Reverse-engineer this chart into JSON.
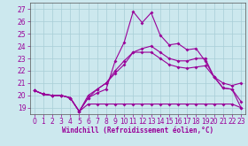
{
  "xlabel": "Windchill (Refroidissement éolien,°C)",
  "xlim_min": -0.5,
  "xlim_max": 23.5,
  "ylim_min": 18.5,
  "ylim_max": 27.5,
  "xticks": [
    0,
    1,
    2,
    3,
    4,
    5,
    6,
    7,
    8,
    9,
    10,
    11,
    12,
    13,
    14,
    15,
    16,
    17,
    18,
    19,
    20,
    21,
    22,
    23
  ],
  "yticks": [
    19,
    20,
    21,
    22,
    23,
    24,
    25,
    26,
    27
  ],
  "background_color": "#cce8ee",
  "grid_color": "#a8cdd6",
  "line_color": "#990099",
  "figw": 2.8,
  "figh": 1.65,
  "curves": [
    [
      20.4,
      20.1,
      20.0,
      20.0,
      19.8,
      18.7,
      19.3,
      19.3,
      19.3,
      19.3,
      19.3,
      19.3,
      19.3,
      19.3,
      19.3,
      19.3,
      19.3,
      19.3,
      19.3,
      19.3,
      19.3,
      19.3,
      19.3,
      19.0
    ],
    [
      20.4,
      20.1,
      20.0,
      20.0,
      19.8,
      18.7,
      19.8,
      20.5,
      21.0,
      21.8,
      22.5,
      23.5,
      23.5,
      23.5,
      23.0,
      22.5,
      22.3,
      22.2,
      22.3,
      22.4,
      21.5,
      20.6,
      20.5,
      19.5
    ],
    [
      20.4,
      20.1,
      20.0,
      20.0,
      19.8,
      18.7,
      20.0,
      20.5,
      21.0,
      22.0,
      22.8,
      23.5,
      23.8,
      24.0,
      23.5,
      23.0,
      22.8,
      22.8,
      23.0,
      23.0,
      21.5,
      21.0,
      20.8,
      21.0
    ],
    [
      20.4,
      20.1,
      20.0,
      20.0,
      19.8,
      18.7,
      19.8,
      20.2,
      20.5,
      22.8,
      24.3,
      26.8,
      25.9,
      26.7,
      24.9,
      24.1,
      24.2,
      23.7,
      23.8,
      22.8,
      21.5,
      20.6,
      20.5,
      19.0
    ]
  ]
}
